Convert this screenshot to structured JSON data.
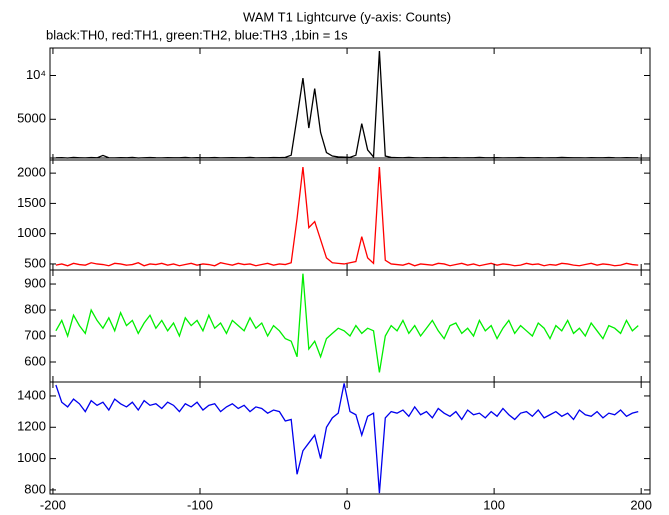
{
  "chart_data": {
    "type": "line",
    "title": "WAM T1 Lightcurve (y-axis: Counts)",
    "subtitle": "black:TH0, red:TH1, green:TH2, blue:TH3 ,1bin = 1s",
    "x": [
      -198,
      -194,
      -190,
      -186,
      -182,
      -178,
      -174,
      -170,
      -166,
      -162,
      -158,
      -154,
      -150,
      -146,
      -142,
      -138,
      -134,
      -130,
      -126,
      -122,
      -118,
      -114,
      -110,
      -106,
      -102,
      -98,
      -94,
      -90,
      -86,
      -82,
      -78,
      -74,
      -70,
      -66,
      -62,
      -58,
      -54,
      -50,
      -46,
      -42,
      -38,
      -34,
      -30,
      -26,
      -22,
      -18,
      -14,
      -10,
      -6,
      -2,
      2,
      6,
      10,
      14,
      18,
      22,
      26,
      30,
      34,
      38,
      42,
      46,
      50,
      54,
      58,
      62,
      66,
      70,
      74,
      78,
      82,
      86,
      90,
      94,
      98,
      102,
      106,
      110,
      114,
      118,
      122,
      126,
      130,
      134,
      138,
      142,
      146,
      150,
      154,
      158,
      162,
      166,
      170,
      174,
      178,
      182,
      186,
      190,
      194,
      198
    ],
    "xlim": [
      -202,
      206
    ],
    "xticks": [
      -200,
      -100,
      0,
      100,
      200
    ],
    "panels": [
      {
        "color": "#000000",
        "ylim": [
          350,
          13140
        ],
        "yticks": [
          {
            "value": 10000,
            "label": "10⁴"
          },
          5000
        ],
        "values": [
          600,
          620,
          580,
          640,
          610,
          590,
          630,
          600,
          870,
          610,
          590,
          620,
          600,
          640,
          580,
          610,
          630,
          600,
          590,
          620,
          610,
          600,
          640,
          590,
          620,
          600,
          610,
          630,
          590,
          600,
          620,
          610,
          600,
          640,
          590,
          610,
          600,
          630,
          620,
          650,
          900,
          5200,
          9700,
          4000,
          8500,
          3500,
          1200,
          800,
          700,
          680,
          650,
          900,
          4500,
          1500,
          700,
          12800,
          800,
          650,
          620,
          600,
          640,
          610,
          590,
          620,
          600,
          610,
          630,
          600,
          620,
          590,
          610,
          600,
          640,
          610,
          600,
          620,
          590,
          610,
          600,
          630,
          610,
          600,
          620,
          590,
          610,
          600,
          640,
          620,
          600,
          610,
          590,
          620,
          600,
          610,
          630,
          600,
          590,
          620,
          610,
          600
        ]
      },
      {
        "color": "#ff0000",
        "ylim": [
          400,
          2250
        ],
        "yticks": [
          500,
          1000,
          1500,
          2000
        ],
        "values": [
          480,
          500,
          470,
          510,
          490,
          480,
          520,
          500,
          490,
          470,
          510,
          500,
          480,
          490,
          520,
          470,
          500,
          490,
          510,
          480,
          500,
          470,
          490,
          510,
          480,
          500,
          490,
          470,
          520,
          500,
          480,
          510,
          490,
          500,
          470,
          490,
          510,
          480,
          500,
          490,
          520,
          1250,
          2100,
          1100,
          1200,
          900,
          600,
          520,
          510,
          500,
          520,
          540,
          950,
          600,
          510,
          2100,
          560,
          500,
          490,
          480,
          510,
          470,
          500,
          490,
          480,
          510,
          500,
          470,
          490,
          510,
          480,
          500,
          470,
          490,
          510,
          480,
          500,
          490,
          470,
          480,
          510,
          490,
          500,
          470,
          490,
          480,
          510,
          500,
          480,
          470,
          490,
          510,
          480,
          500,
          490,
          470,
          480,
          510,
          490,
          480
        ]
      },
      {
        "color": "#00ee00",
        "ylim": [
          523,
          954
        ],
        "yticks": [
          600,
          700,
          800,
          900
        ],
        "values": [
          720,
          760,
          700,
          780,
          740,
          710,
          800,
          760,
          730,
          770,
          720,
          790,
          740,
          760,
          710,
          750,
          780,
          730,
          760,
          720,
          750,
          700,
          770,
          740,
          760,
          720,
          780,
          730,
          750,
          710,
          760,
          740,
          720,
          770,
          730,
          750,
          700,
          740,
          720,
          690,
          680,
          620,
          940,
          650,
          680,
          620,
          690,
          710,
          730,
          720,
          700,
          740,
          710,
          730,
          720,
          560,
          700,
          740,
          720,
          760,
          710,
          740,
          700,
          730,
          760,
          720,
          690,
          740,
          750,
          710,
          730,
          700,
          760,
          720,
          740,
          690,
          730,
          760,
          710,
          740,
          720,
          700,
          750,
          730,
          690,
          740,
          720,
          760,
          710,
          730,
          700,
          750,
          720,
          690,
          740,
          730,
          710,
          760,
          720,
          740
        ]
      },
      {
        "color": "#0000ee",
        "ylim": [
          774,
          1489
        ],
        "yticks": [
          800,
          1000,
          1200,
          1400
        ],
        "values": [
          1470,
          1360,
          1330,
          1380,
          1350,
          1300,
          1370,
          1340,
          1360,
          1310,
          1380,
          1350,
          1330,
          1360,
          1310,
          1370,
          1340,
          1350,
          1320,
          1360,
          1340,
          1300,
          1350,
          1330,
          1360,
          1310,
          1340,
          1350,
          1300,
          1330,
          1350,
          1320,
          1340,
          1300,
          1330,
          1320,
          1290,
          1310,
          1300,
          1240,
          1250,
          900,
          1050,
          1100,
          1150,
          1000,
          1200,
          1260,
          1290,
          1480,
          1300,
          1280,
          1150,
          1270,
          1290,
          780,
          1260,
          1300,
          1290,
          1310,
          1270,
          1330,
          1280,
          1300,
          1260,
          1320,
          1290,
          1270,
          1300,
          1250,
          1310,
          1280,
          1290,
          1260,
          1300,
          1270,
          1320,
          1280,
          1250,
          1290,
          1300,
          1270,
          1310,
          1260,
          1280,
          1300,
          1270,
          1290,
          1250,
          1310,
          1280,
          1270,
          1300,
          1260,
          1290,
          1280,
          1310,
          1270,
          1290,
          1300
        ]
      }
    ]
  }
}
